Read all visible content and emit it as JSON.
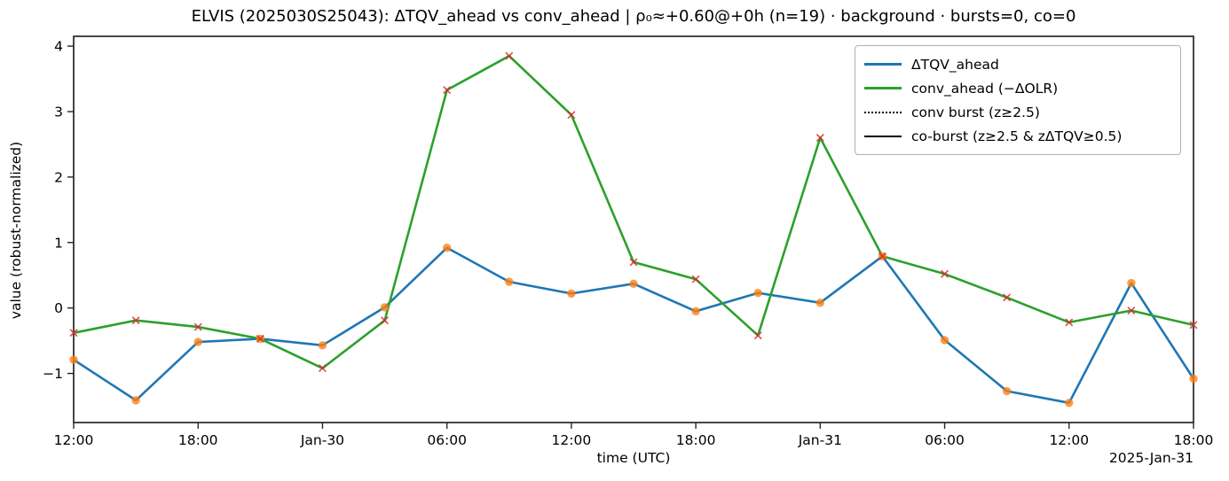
{
  "chart_data": {
    "type": "line",
    "title": "ELVIS (2025030S25043): ΔTQV_ahead vs conv_ahead | ρ₀≈+0.60@+0h (n=19) · background · bursts=0, co=0",
    "xlabel": "time (UTC)",
    "ylabel": "value (robust-normalized)",
    "x_date_annotation": "2025-Jan-31",
    "x": [
      "Jan-29 12:00",
      "Jan-29 15:00",
      "Jan-29 18:00",
      "Jan-29 21:00",
      "Jan-30 00:00",
      "Jan-30 03:00",
      "Jan-30 06:00",
      "Jan-30 09:00",
      "Jan-30 12:00",
      "Jan-30 15:00",
      "Jan-30 18:00",
      "Jan-30 21:00",
      "Jan-31 00:00",
      "Jan-31 03:00",
      "Jan-31 06:00",
      "Jan-31 09:00",
      "Jan-31 12:00",
      "Jan-31 15:00",
      "Jan-31 18:00"
    ],
    "x_tick_labels": [
      {
        "index": 0,
        "label": "12:00"
      },
      {
        "index": 2,
        "label": "18:00"
      },
      {
        "index": 4,
        "label": "Jan-30"
      },
      {
        "index": 6,
        "label": "06:00"
      },
      {
        "index": 8,
        "label": "12:00"
      },
      {
        "index": 10,
        "label": "18:00"
      },
      {
        "index": 12,
        "label": "Jan-31"
      },
      {
        "index": 14,
        "label": "06:00"
      },
      {
        "index": 16,
        "label": "12:00"
      },
      {
        "index": 18,
        "label": "18:00"
      }
    ],
    "y_ticks": [
      {
        "v": -1,
        "label": "−1"
      },
      {
        "v": 0,
        "label": "0"
      },
      {
        "v": 1,
        "label": "1"
      },
      {
        "v": 2,
        "label": "2"
      },
      {
        "v": 3,
        "label": "3"
      },
      {
        "v": 4,
        "label": "4"
      }
    ],
    "ylim": [
      -1.75,
      4.15
    ],
    "grid": false,
    "legend_position": "upper right",
    "series": [
      {
        "name": "ΔTQV_ahead",
        "color": "#1f77b4",
        "marker": "circle",
        "marker_color": "#ff7f0e",
        "values": [
          -0.79,
          -1.41,
          -0.52,
          -0.47,
          -0.57,
          0.01,
          0.92,
          0.4,
          0.22,
          0.37,
          -0.05,
          0.23,
          0.08,
          0.79,
          -0.49,
          -1.27,
          -1.45,
          0.38,
          -1.08
        ]
      },
      {
        "name": "conv_ahead (−ΔOLR)",
        "color": "#2ca02c",
        "marker": "x",
        "marker_color": "#d62728",
        "values": [
          -0.38,
          -0.19,
          -0.29,
          -0.47,
          -0.92,
          -0.19,
          3.33,
          3.85,
          2.95,
          0.7,
          0.44,
          -0.42,
          2.6,
          0.79,
          0.52,
          0.16,
          -0.22,
          -0.04,
          -0.26
        ]
      }
    ],
    "legend": [
      {
        "label": "ΔTQV_ahead",
        "style": "blue-solid",
        "color": "#1f77b4"
      },
      {
        "label": "conv_ahead (−ΔOLR)",
        "style": "green-solid",
        "color": "#2ca02c"
      },
      {
        "label": "conv burst (z≥2.5)",
        "style": "dotted",
        "color": "#000000"
      },
      {
        "label": "co-burst (z≥2.5 & zΔTQV≥0.5)",
        "style": "black-solid",
        "color": "#000000"
      }
    ]
  }
}
